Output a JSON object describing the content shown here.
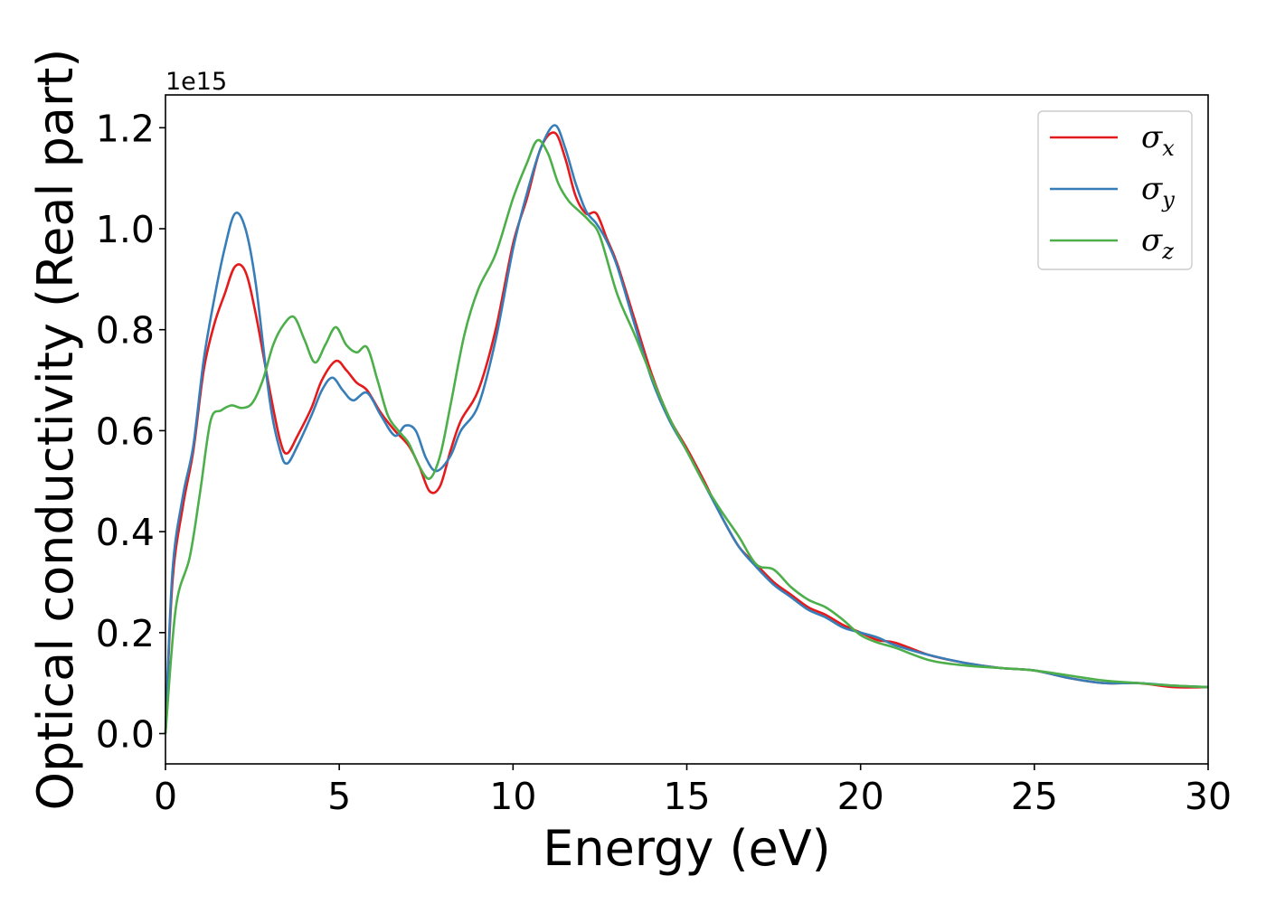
{
  "chart_data": {
    "type": "line",
    "xlabel": "Energy (eV)",
    "ylabel": "Optical conductivity (Real part)",
    "y_offset_text": "1e15",
    "xlim": [
      0,
      30
    ],
    "ylim": [
      -0.06,
      1.265
    ],
    "x_ticks": [
      0,
      5,
      10,
      15,
      20,
      25,
      30
    ],
    "x_tick_labels": [
      "0",
      "5",
      "10",
      "15",
      "20",
      "25",
      "30"
    ],
    "y_ticks": [
      0.0,
      0.2,
      0.4,
      0.6,
      0.8,
      1.0,
      1.2
    ],
    "y_tick_labels": [
      "0.0",
      "0.2",
      "0.4",
      "0.6",
      "0.8",
      "1.0",
      "1.2"
    ],
    "grid": false,
    "legend_position": "top-right",
    "series": [
      {
        "name": "σ_x",
        "sub": "x",
        "color": "#e41a1c",
        "x": [
          0,
          0.2,
          0.5,
          0.8,
          1.1,
          1.4,
          1.7,
          2.0,
          2.3,
          2.6,
          3.0,
          3.3,
          3.5,
          3.8,
          4.2,
          4.5,
          4.9,
          5.2,
          5.5,
          5.8,
          6.2,
          6.6,
          7.0,
          7.3,
          7.6,
          7.9,
          8.2,
          8.5,
          9.0,
          9.5,
          10.0,
          10.4,
          10.8,
          11.2,
          11.5,
          11.8,
          12.1,
          12.4,
          12.7,
          13.0,
          13.5,
          14.0,
          14.5,
          15.0,
          15.5,
          16.0,
          16.5,
          17.0,
          17.5,
          18.0,
          18.5,
          19.0,
          19.5,
          20.0,
          20.5,
          21.0,
          22.0,
          23.0,
          24.0,
          25.0,
          26.0,
          27.0,
          28.0,
          29.0,
          30.0
        ],
        "y": [
          0.0,
          0.3,
          0.45,
          0.56,
          0.72,
          0.81,
          0.87,
          0.925,
          0.915,
          0.83,
          0.68,
          0.58,
          0.555,
          0.59,
          0.645,
          0.7,
          0.738,
          0.72,
          0.695,
          0.68,
          0.635,
          0.6,
          0.57,
          0.53,
          0.48,
          0.49,
          0.56,
          0.62,
          0.68,
          0.8,
          0.97,
          1.06,
          1.16,
          1.19,
          1.14,
          1.065,
          1.03,
          1.03,
          0.98,
          0.93,
          0.82,
          0.71,
          0.625,
          0.565,
          0.5,
          0.43,
          0.37,
          0.335,
          0.3,
          0.275,
          0.25,
          0.235,
          0.215,
          0.2,
          0.185,
          0.18,
          0.155,
          0.14,
          0.13,
          0.125,
          0.11,
          0.1,
          0.1,
          0.092,
          0.092
        ]
      },
      {
        "name": "σ_y",
        "sub": "y",
        "color": "#377eb8",
        "x": [
          0,
          0.2,
          0.5,
          0.8,
          1.1,
          1.4,
          1.7,
          2.0,
          2.3,
          2.6,
          3.0,
          3.3,
          3.5,
          3.8,
          4.2,
          4.5,
          4.8,
          5.1,
          5.4,
          5.8,
          6.2,
          6.6,
          6.9,
          7.2,
          7.5,
          7.8,
          8.2,
          8.5,
          9.0,
          9.5,
          10.0,
          10.4,
          10.8,
          11.2,
          11.5,
          11.8,
          12.1,
          12.4,
          12.7,
          13.0,
          13.5,
          14.0,
          14.5,
          15.0,
          15.5,
          16.0,
          16.5,
          17.0,
          17.5,
          18.0,
          18.5,
          19.0,
          19.5,
          20.0,
          20.5,
          21.0,
          22.0,
          23.0,
          24.0,
          25.0,
          26.0,
          27.0,
          28.0,
          29.0,
          30.0
        ],
        "y": [
          0.0,
          0.32,
          0.47,
          0.57,
          0.74,
          0.86,
          0.96,
          1.03,
          1.0,
          0.89,
          0.66,
          0.56,
          0.535,
          0.57,
          0.63,
          0.68,
          0.705,
          0.68,
          0.66,
          0.675,
          0.63,
          0.59,
          0.61,
          0.6,
          0.545,
          0.52,
          0.55,
          0.6,
          0.65,
          0.78,
          0.96,
          1.07,
          1.16,
          1.205,
          1.16,
          1.09,
          1.035,
          1.01,
          0.975,
          0.925,
          0.81,
          0.7,
          0.62,
          0.56,
          0.495,
          0.43,
          0.37,
          0.33,
          0.295,
          0.27,
          0.245,
          0.23,
          0.21,
          0.2,
          0.19,
          0.175,
          0.155,
          0.14,
          0.13,
          0.125,
          0.11,
          0.1,
          0.1,
          0.095,
          0.092
        ]
      },
      {
        "name": "σ_z",
        "sub": "z",
        "color": "#4daf4a",
        "x": [
          0,
          0.3,
          0.7,
          1.0,
          1.3,
          1.6,
          1.9,
          2.2,
          2.5,
          2.8,
          3.1,
          3.4,
          3.7,
          4.0,
          4.3,
          4.6,
          4.9,
          5.2,
          5.5,
          5.8,
          6.1,
          6.4,
          6.7,
          7.0,
          7.3,
          7.6,
          7.9,
          8.2,
          8.6,
          9.0,
          9.5,
          10.0,
          10.4,
          10.7,
          11.0,
          11.3,
          11.6,
          11.9,
          12.2,
          12.5,
          13.0,
          13.5,
          14.0,
          14.5,
          15.0,
          15.5,
          16.0,
          16.5,
          17.0,
          17.5,
          18.0,
          18.5,
          19.0,
          19.5,
          20.0,
          20.5,
          21.0,
          22.0,
          23.0,
          24.0,
          25.0,
          26.0,
          27.0,
          28.0,
          29.0,
          30.0
        ],
        "y": [
          0.0,
          0.25,
          0.35,
          0.48,
          0.62,
          0.64,
          0.65,
          0.645,
          0.655,
          0.7,
          0.77,
          0.81,
          0.825,
          0.78,
          0.735,
          0.77,
          0.805,
          0.77,
          0.755,
          0.765,
          0.7,
          0.63,
          0.6,
          0.575,
          0.53,
          0.505,
          0.55,
          0.65,
          0.79,
          0.88,
          0.95,
          1.06,
          1.13,
          1.175,
          1.15,
          1.09,
          1.055,
          1.035,
          1.015,
          0.985,
          0.87,
          0.79,
          0.705,
          0.625,
          0.56,
          0.495,
          0.44,
          0.39,
          0.335,
          0.325,
          0.29,
          0.265,
          0.25,
          0.225,
          0.195,
          0.18,
          0.17,
          0.145,
          0.135,
          0.13,
          0.125,
          0.115,
          0.105,
          0.1,
          0.095,
          0.092
        ]
      }
    ]
  }
}
